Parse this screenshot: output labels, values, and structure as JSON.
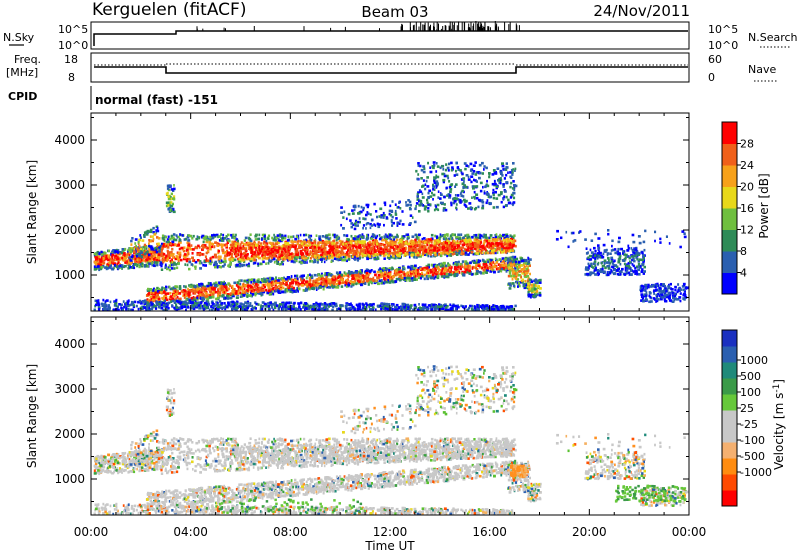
{
  "header": {
    "station": "Kerguelen (fitACF)",
    "beam": "Beam 03",
    "date": "24/Nov/2011"
  },
  "noise_panel": {
    "left_label": "N.Sky",
    "right_label": "N.Search",
    "left_ticks": [
      "10^5",
      "10^0"
    ],
    "right_ticks": [
      "10^5",
      "10^0"
    ]
  },
  "freq_panel": {
    "left_label_line1": "Freq.",
    "left_label_line2": "[MHz]",
    "right_label": "Nave",
    "left_ticks": [
      "18",
      "8"
    ],
    "right_ticks": [
      "60",
      "0"
    ]
  },
  "cpid": {
    "label": "CPID",
    "value": "normal (fast) -151"
  },
  "colors": {
    "power_scale": [
      "#0000ff",
      "#2a5fb0",
      "#2e8b57",
      "#6fbf3f",
      "#e8d81a",
      "#f7a11a",
      "#f0601a",
      "#ff0000"
    ],
    "velocity_scale": [
      "#ff0000",
      "#ff5000",
      "#ff9020",
      "#f5b060",
      "#c8c8c8",
      "#c8c8c8",
      "#5ac030",
      "#3aa040",
      "#1f8a7a",
      "#2a5fb0",
      "#1a30c0"
    ]
  },
  "chart_data": [
    {
      "type": "heatmap",
      "name": "power",
      "ylabel": "Slant Range [km]",
      "xlim_hours": [
        0,
        24
      ],
      "ylim_km": [
        200,
        4600
      ],
      "yticks": [
        "1000",
        "2000",
        "3000",
        "4000"
      ],
      "colorbar": {
        "label": "Power [dB]",
        "ticks": [
          "4",
          "8",
          "12",
          "16",
          "20",
          "24",
          "28"
        ],
        "range": [
          0,
          32
        ]
      }
    },
    {
      "type": "heatmap",
      "name": "velocity",
      "ylabel": "Slant Range [km]",
      "xlabel": "Time UT",
      "xlim_hours": [
        0,
        24
      ],
      "ylim_km": [
        200,
        4600
      ],
      "xticks": [
        "00:00",
        "04:00",
        "08:00",
        "12:00",
        "16:00",
        "20:00",
        "00:00"
      ],
      "yticks": [
        "1000",
        "2000",
        "3000",
        "4000"
      ],
      "colorbar": {
        "label": "Velocity [m s",
        "label_sup": "-1",
        "label_end": "]",
        "ticks": [
          "1000",
          "500",
          "100",
          "25",
          "-25",
          "-100",
          "-500",
          "-1000"
        ]
      }
    }
  ]
}
